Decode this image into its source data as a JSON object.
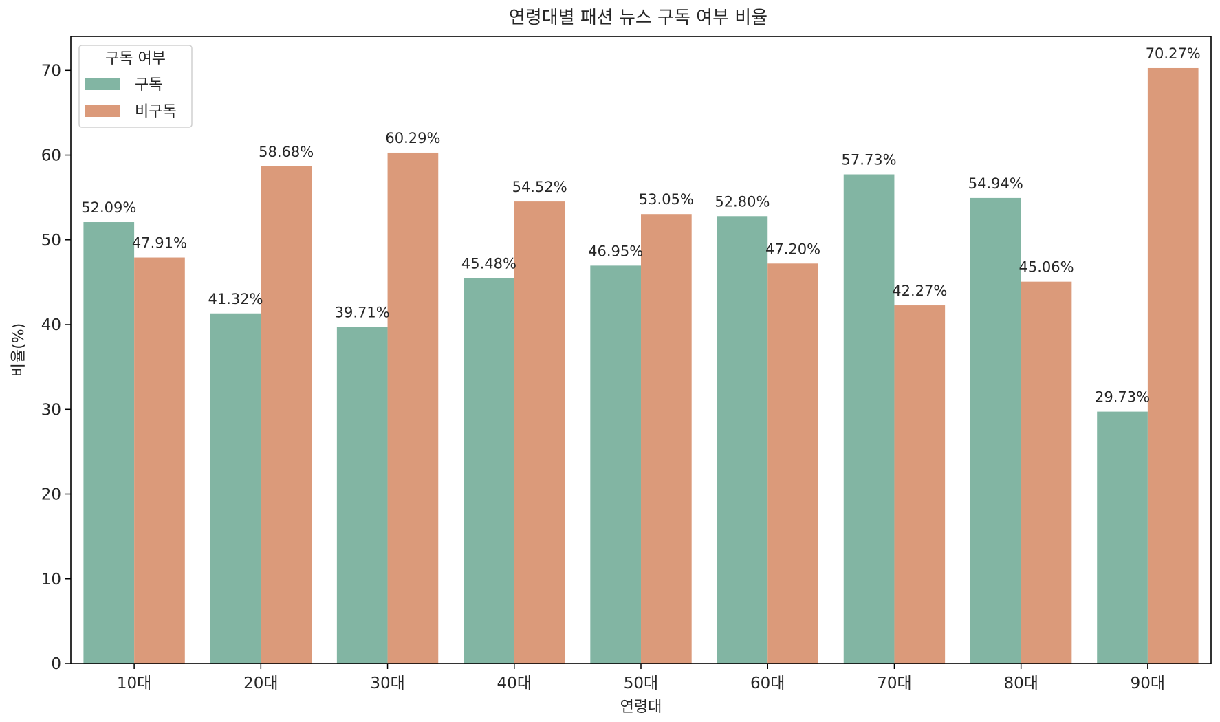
{
  "chart_data": {
    "type": "bar",
    "title": "연령대별 패션 뉴스 구독 여부 비율",
    "xlabel": "연령대",
    "ylabel": "비율(%)",
    "categories": [
      "10대",
      "20대",
      "30대",
      "40대",
      "50대",
      "60대",
      "70대",
      "80대",
      "90대"
    ],
    "series": [
      {
        "name": "구독",
        "color": "#82b5a3",
        "values": [
          52.09,
          41.32,
          39.71,
          45.48,
          46.95,
          52.8,
          57.73,
          54.94,
          29.73
        ]
      },
      {
        "name": "비구독",
        "color": "#db9a7a",
        "values": [
          47.91,
          58.68,
          60.29,
          54.52,
          53.05,
          47.2,
          42.27,
          45.06,
          70.27
        ]
      }
    ],
    "value_labels": [
      [
        "52.09%",
        "41.32%",
        "39.71%",
        "45.48%",
        "46.95%",
        "52.80%",
        "57.73%",
        "54.94%",
        "29.73%"
      ],
      [
        "47.91%",
        "58.68%",
        "60.29%",
        "54.52%",
        "53.05%",
        "47.20%",
        "42.27%",
        "45.06%",
        "70.27%"
      ]
    ],
    "ylim": [
      0,
      74
    ],
    "yticks": [
      "0",
      "10",
      "20",
      "30",
      "40",
      "50",
      "60",
      "70"
    ],
    "grid": false,
    "legend": {
      "title": "구독 여부",
      "position": "top-left"
    }
  }
}
